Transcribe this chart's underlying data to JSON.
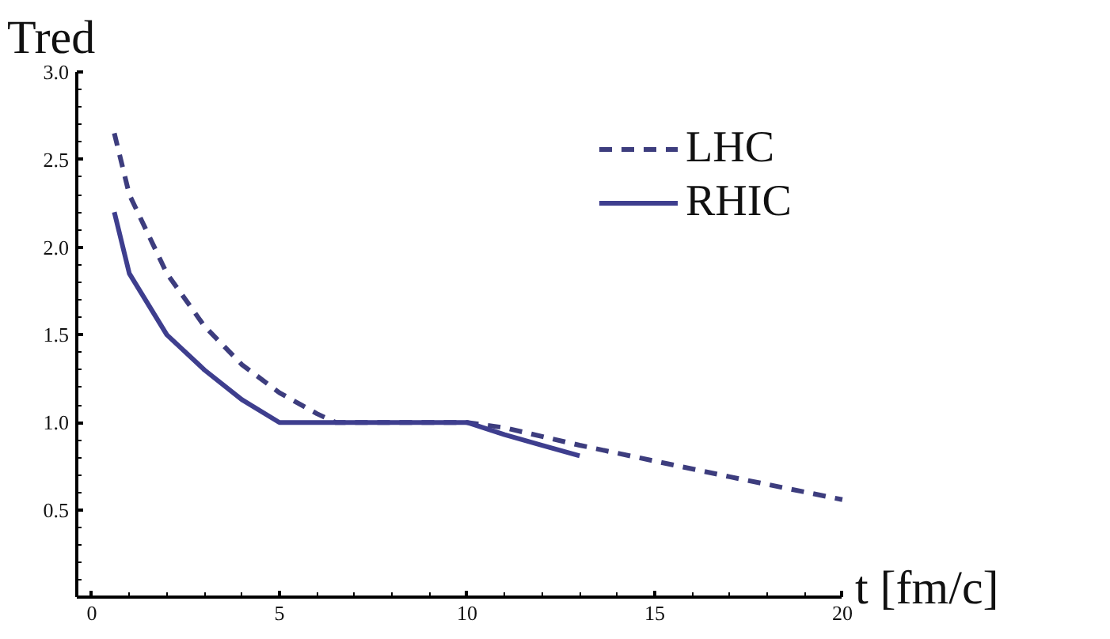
{
  "chart_data": {
    "type": "line",
    "ylabel": "Tred",
    "xlabel": "t [fm/c]",
    "xlim": [
      -0.4,
      20
    ],
    "ylim": [
      0,
      3.0
    ],
    "xticks": [
      0,
      5,
      10,
      15,
      20
    ],
    "yticks": [
      0.5,
      {
        "value": 1,
        "label": "1.0"
      },
      1.5,
      {
        "value": 2,
        "label": "2.0"
      },
      2.5,
      {
        "value": 3,
        "label": "3.0"
      }
    ],
    "grid": false,
    "legend": "top right",
    "series": [
      {
        "name": "LHC",
        "color": "#3d3d7e",
        "line_style": "dashed",
        "x": [
          0.6,
          1,
          2,
          3,
          4,
          5,
          6,
          6.5,
          10,
          11,
          13,
          15,
          17,
          20
        ],
        "values": [
          2.65,
          2.3,
          1.85,
          1.55,
          1.33,
          1.17,
          1.05,
          1.0,
          1.0,
          0.97,
          0.87,
          0.78,
          0.69,
          0.56
        ]
      },
      {
        "name": "RHIC",
        "color": "#3e3e8e",
        "line_style": "solid",
        "x": [
          0.6,
          1,
          2,
          3,
          4,
          5,
          10,
          11,
          12,
          13
        ],
        "values": [
          2.2,
          1.85,
          1.5,
          1.3,
          1.13,
          1.0,
          1.0,
          0.93,
          0.87,
          0.81
        ]
      }
    ]
  }
}
